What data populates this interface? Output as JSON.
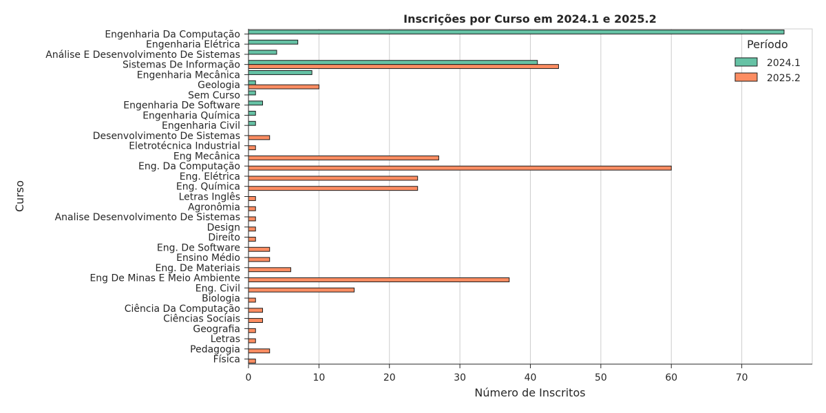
{
  "chart_data": {
    "type": "bar",
    "orientation": "horizontal",
    "title": "Inscrições por Curso em 2024.1 e 2025.2",
    "xlabel": "Número de Inscritos",
    "ylabel": "Curso",
    "xlim": [
      0,
      80
    ],
    "xticks": [
      0,
      10,
      20,
      30,
      40,
      50,
      60,
      70
    ],
    "grid": "vertical",
    "legend_title": "Período",
    "legend_position": "top-right",
    "categories": [
      "Engenharia Da Computação",
      "Engenharia Elétrica",
      "Análise E Desenvolvimento De Sistemas",
      "Sistemas De Informação",
      "Engenharia Mecânica",
      "Geologia",
      "Sem Curso",
      "Engenharia De Software",
      "Engenharia Química",
      "Engenharia Civil",
      "Desenvolvimento De Sistemas",
      "Eletrotécnica Industrial",
      "Eng Mecânica",
      "Eng. Da Computação",
      "Eng. Elétrica",
      "Eng. Química",
      "Letras Inglês",
      "Agronômia",
      "Analise Desenvolvimento De Sistemas",
      "Design",
      "Direito",
      "Eng. De Software",
      "Ensino Médio",
      "Eng. De Materiais",
      "Eng De Minas E Meio Ambiente",
      "Eng. Civil",
      "Biologia",
      "Ciência Da Computação",
      "Ciências Sociais",
      "Geografia",
      "Letras",
      "Pedagogia",
      "Física"
    ],
    "series": [
      {
        "name": "2024.1",
        "color": "#66c2a5",
        "values": [
          76,
          7,
          4,
          41,
          9,
          1,
          1,
          2,
          1,
          1,
          null,
          null,
          null,
          null,
          null,
          null,
          null,
          null,
          null,
          null,
          null,
          null,
          null,
          null,
          null,
          null,
          null,
          null,
          null,
          null,
          null,
          null,
          null
        ]
      },
      {
        "name": "2025.2",
        "color": "#fc8d62",
        "values": [
          null,
          null,
          null,
          44,
          null,
          10,
          null,
          null,
          null,
          null,
          3,
          1,
          27,
          60,
          24,
          24,
          1,
          1,
          1,
          1,
          1,
          3,
          3,
          6,
          37,
          15,
          1,
          2,
          2,
          1,
          1,
          3,
          1
        ]
      }
    ]
  }
}
